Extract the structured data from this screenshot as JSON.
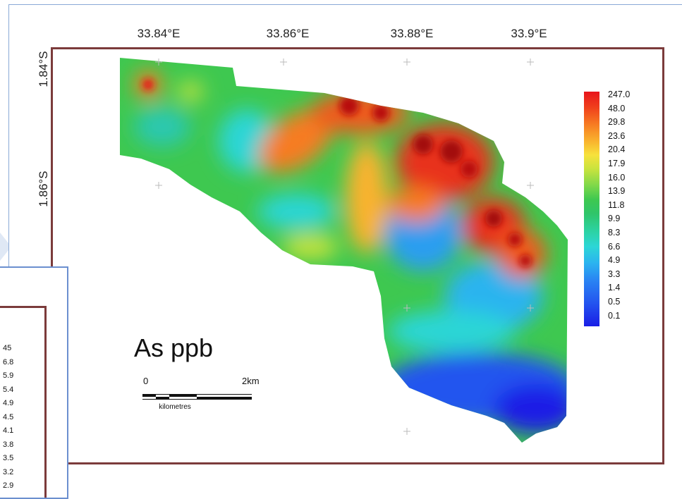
{
  "map": {
    "lon_labels": [
      "33.84°E",
      "33.86°E",
      "33.88°E",
      "33.9°E"
    ],
    "lat_labels": [
      "1.84°S",
      "1.86°S"
    ],
    "unit_label": "As ppb",
    "legend_values": [
      "247.0",
      "48.0",
      "29.8",
      "23.6",
      "20.4",
      "17.9",
      "16.0",
      "13.9",
      "11.8",
      "9.9",
      "8.3",
      "6.6",
      "4.9",
      "3.3",
      "1.4",
      "0.5",
      "0.1"
    ],
    "legend_colors": {
      "high": "#e8141b",
      "mid_high": "#f77c22",
      "mid": "#3ec850",
      "mid_low": "#2cd6d6",
      "low": "#1a1ee6"
    },
    "scale": {
      "start": "0",
      "end": "2km",
      "caption": "kilometres"
    }
  },
  "inset": {
    "legend_values_partial": [
      "45",
      "6.8",
      "5.9",
      "5.4",
      "4.9",
      "4.5",
      "4.1",
      "3.8",
      "3.5",
      "3.2",
      "2.9"
    ]
  }
}
